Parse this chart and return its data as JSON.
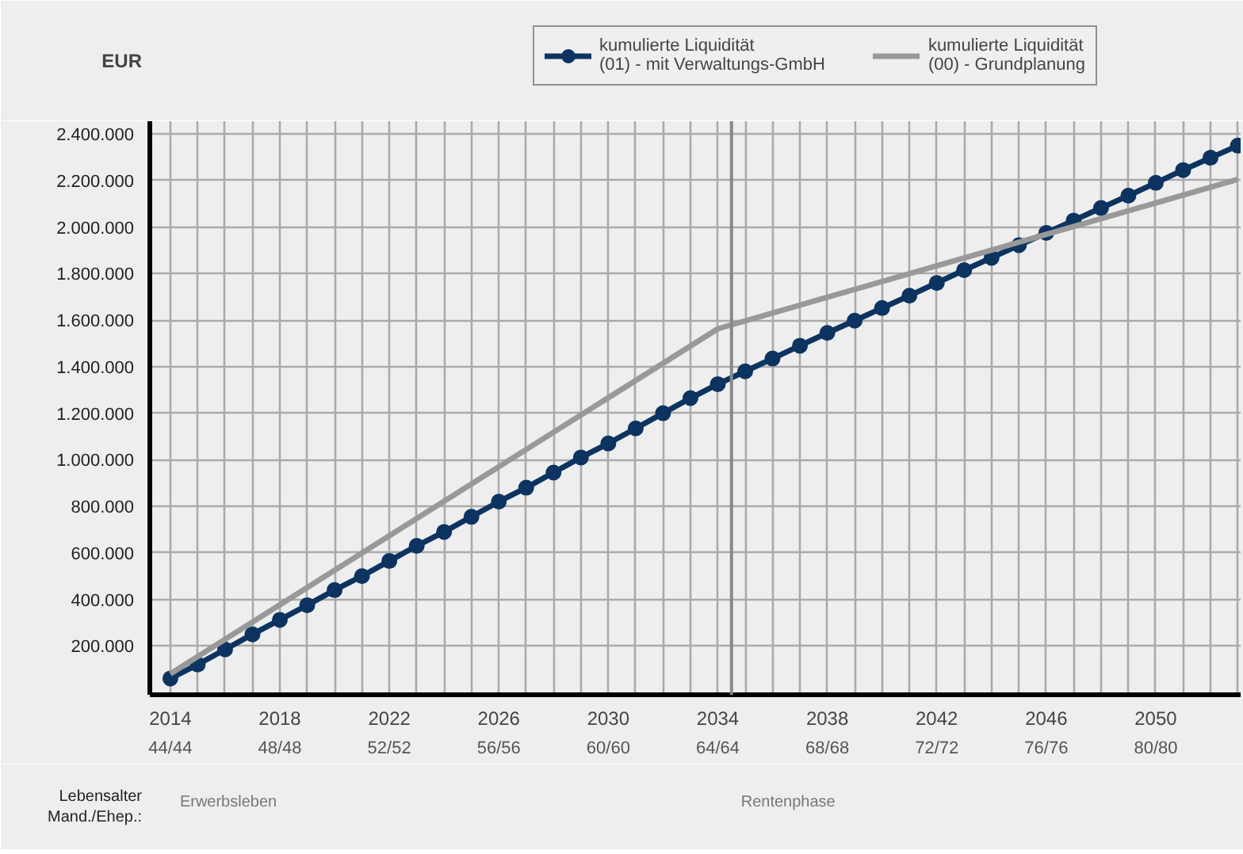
{
  "chart_data": {
    "type": "line",
    "ylabel": "EUR",
    "xlim": [
      2013.25,
      2053.1
    ],
    "ylim": [
      -10000,
      2455000
    ],
    "xticks": [
      2014,
      {
        "value": 2015,
        "label": null
      },
      {
        "value": 2016,
        "label": null
      },
      {
        "value": 2017,
        "label": null
      },
      2018,
      {
        "value": 2019,
        "label": null
      },
      {
        "value": 2020,
        "label": null
      },
      {
        "value": 2021,
        "label": null
      },
      2022,
      {
        "value": 2023,
        "label": null
      },
      {
        "value": 2024,
        "label": null
      },
      {
        "value": 2025,
        "label": null
      },
      2026,
      {
        "value": 2027,
        "label": null
      },
      {
        "value": 2028,
        "label": null
      },
      {
        "value": 2029,
        "label": null
      },
      2030,
      {
        "value": 2031,
        "label": null
      },
      {
        "value": 2032,
        "label": null
      },
      {
        "value": 2033,
        "label": null
      },
      2034,
      {
        "value": 2035,
        "label": null
      },
      {
        "value": 2036,
        "label": null
      },
      {
        "value": 2037,
        "label": null
      },
      2038,
      {
        "value": 2039,
        "label": null
      },
      {
        "value": 2040,
        "label": null
      },
      {
        "value": 2041,
        "label": null
      },
      2042,
      {
        "value": 2043,
        "label": null
      },
      {
        "value": 2044,
        "label": null
      },
      {
        "value": 2045,
        "label": null
      },
      2046,
      {
        "value": 2047,
        "label": null
      },
      {
        "value": 2048,
        "label": null
      },
      {
        "value": 2049,
        "label": null
      },
      2050,
      {
        "value": 2051,
        "label": null
      },
      {
        "value": 2052,
        "label": null
      },
      {
        "value": 2053,
        "label": null
      }
    ],
    "yticks": [
      {
        "value": 200000,
        "label": "200.000"
      },
      {
        "value": 400000,
        "label": "400.000"
      },
      {
        "value": 600000,
        "label": "600.000"
      },
      {
        "value": 800000,
        "label": "800.000"
      },
      {
        "value": 1000000,
        "label": "1.000.000"
      },
      {
        "value": 1200000,
        "label": "1.200.000"
      },
      {
        "value": 1400000,
        "label": "1.400.000"
      },
      {
        "value": 1600000,
        "label": "1.600.000"
      },
      {
        "value": 1800000,
        "label": "1.800.000"
      },
      {
        "value": 2000000,
        "label": "2.000.000"
      },
      {
        "value": 2200000,
        "label": "2.200.000"
      },
      {
        "value": 2400000,
        "label": "2.400.000"
      }
    ],
    "grid": true,
    "legend": "top",
    "line_style": "solid",
    "series": [
      {
        "name": "kumulierte Liquidität\n(01) - mit Verwaltungs-GmbH",
        "color": "#0d3461",
        "marker": "circle",
        "x": [
          2014,
          2015,
          2016,
          2017,
          2018,
          2019,
          2020,
          2021,
          2022,
          2023,
          2024,
          2025,
          2026,
          2027,
          2028,
          2029,
          2030,
          2031,
          2032,
          2033,
          2034,
          2035,
          2036,
          2037,
          2038,
          2039,
          2040,
          2041,
          2042,
          2043,
          2044,
          2045,
          2046,
          2047,
          2048,
          2049,
          2050,
          2051,
          2052,
          2053
        ],
        "values": [
          60000,
          120000,
          185000,
          250000,
          312000,
          375000,
          440000,
          500000,
          565000,
          630000,
          690000,
          755000,
          820000,
          880000,
          945000,
          1010000,
          1070000,
          1135000,
          1200000,
          1265000,
          1325000,
          1380000,
          1435000,
          1490000,
          1545000,
          1598000,
          1652000,
          1705000,
          1760000,
          1815000,
          1868000,
          1922000,
          1975000,
          2028000,
          2082000,
          2135000,
          2190000,
          2245000,
          2298000,
          2350000
        ]
      },
      {
        "name": "kumulierte Liquidität\n(00) - Grundplanung",
        "color": "#999999",
        "marker": "none",
        "x": [
          2014,
          2034,
          2053
        ],
        "values": [
          80000,
          1563000,
          2205000
        ]
      }
    ],
    "ref_lines": [
      {
        "axis": "x",
        "value": 2034.5,
        "color": "#888888"
      }
    ],
    "annotations": [
      "Lebensalter\nMand./Ehep.:",
      "44/44",
      "48/48",
      "52/52",
      "56/56",
      "60/60",
      "64/64",
      "68/68",
      "72/72",
      "76/76",
      "80/80",
      "Erwerbsleben",
      "Rentenphase"
    ]
  }
}
